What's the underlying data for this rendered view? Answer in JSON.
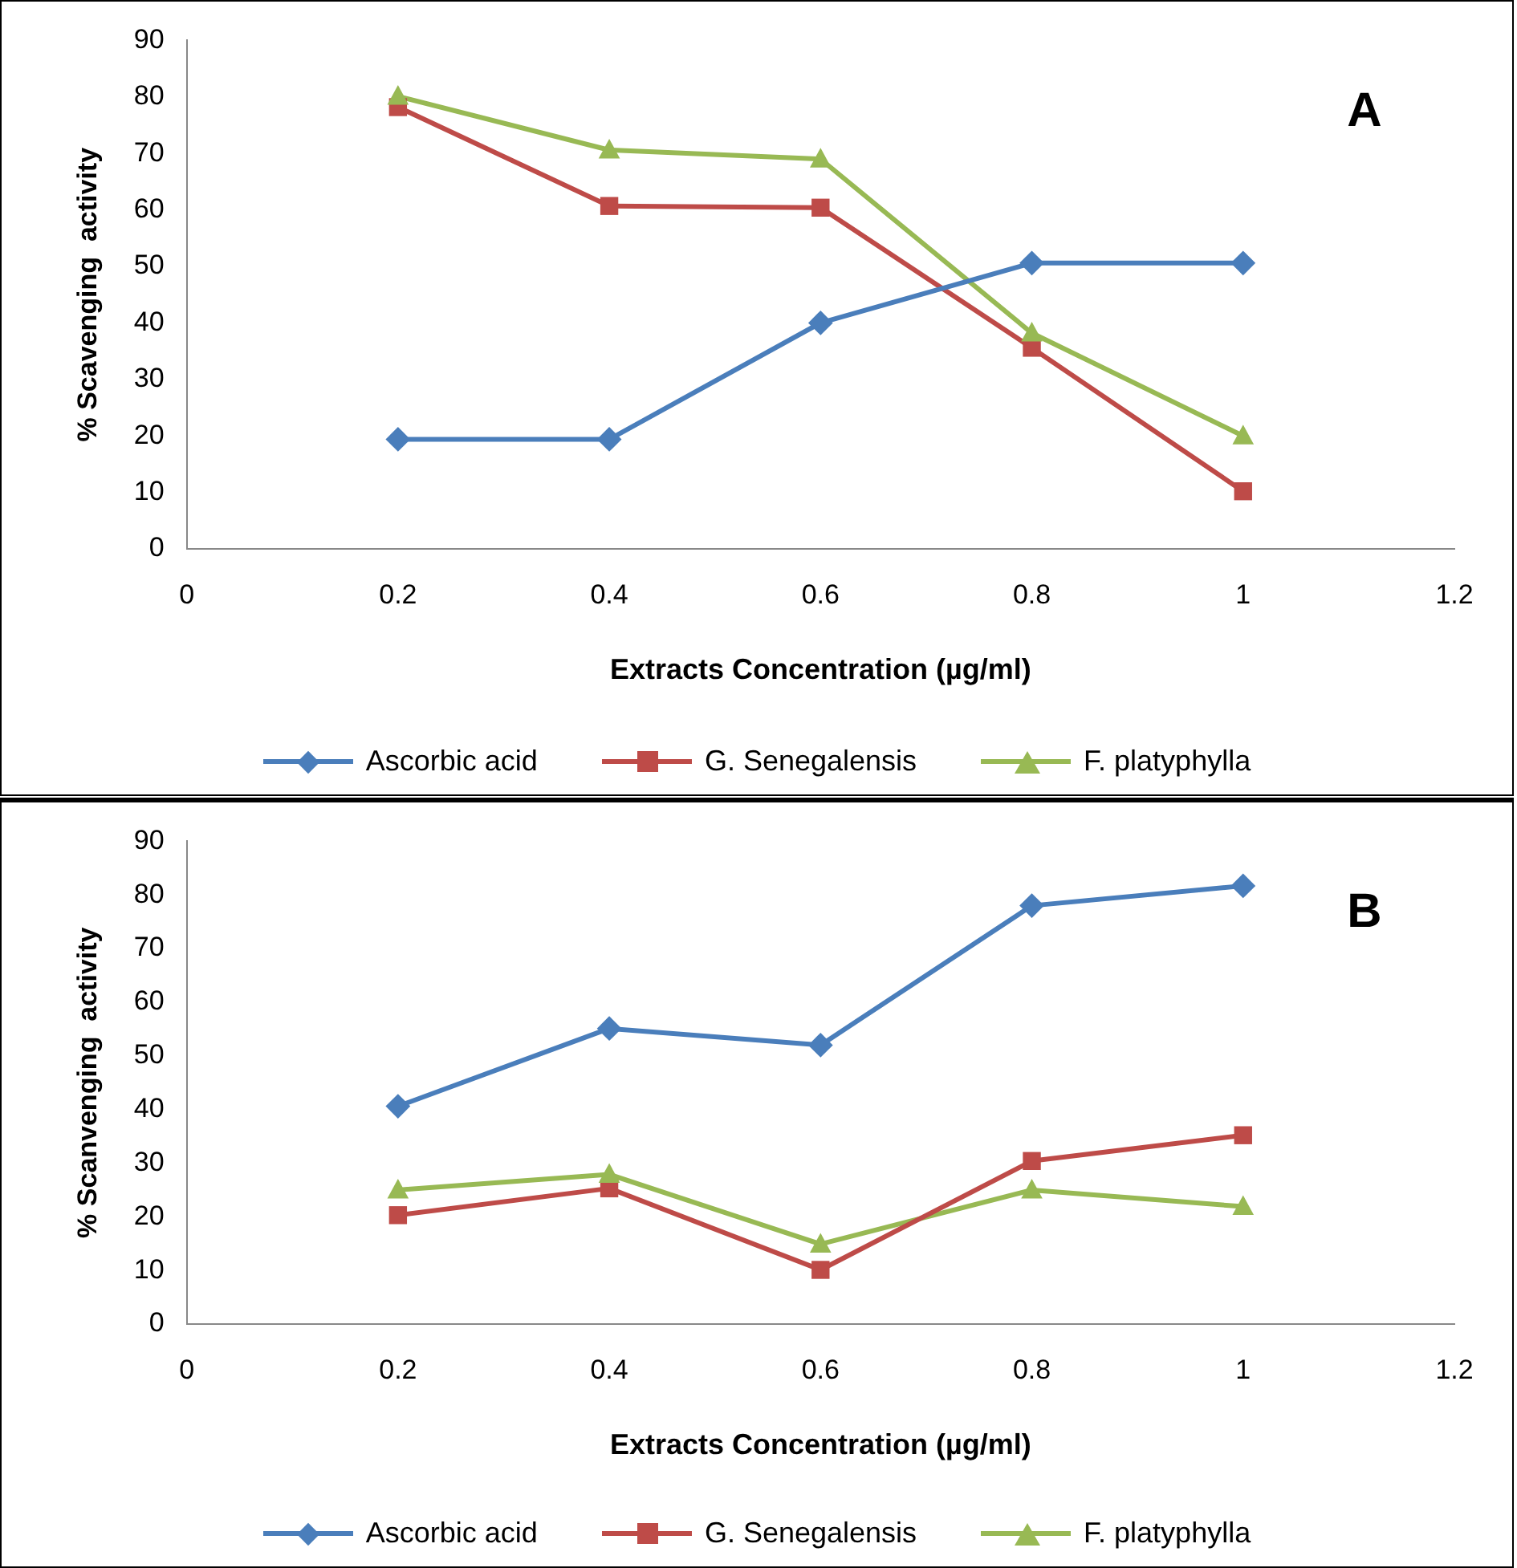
{
  "chart_data": [
    {
      "type": "line",
      "xlabel": "Extracts Concentration (µg/ml)",
      "ylabel": "% Scavenging  activity",
      "annotations": [
        "A"
      ],
      "xlim": [
        0,
        1.2
      ],
      "xticks": [
        0,
        0.2,
        0.4,
        0.6,
        0.8,
        1,
        1.2
      ],
      "ylim": [
        0,
        90
      ],
      "yticks": [
        0,
        10,
        20,
        30,
        40,
        50,
        60,
        70,
        80,
        90
      ],
      "grid": false,
      "legend": "bottom",
      "x": [
        0.2,
        0.4,
        0.6,
        0.8,
        1
      ],
      "series": [
        {
          "name": "Ascorbic acid",
          "color": "#4a7ebb",
          "marker": "diamond",
          "values": [
            19.4,
            19.4,
            40,
            50.6,
            50.6
          ]
        },
        {
          "name": "G. Senegalensis",
          "color": "#be4b48",
          "marker": "square",
          "values": [
            78.2,
            60.7,
            60.4,
            35.6,
            10.2
          ]
        },
        {
          "name": "F. platyphylla",
          "color": "#98b954",
          "marker": "triangle",
          "values": [
            80.1,
            70.6,
            69,
            38.2,
            20
          ]
        }
      ]
    },
    {
      "type": "line",
      "xlabel": "Extracts Concentration (µg/ml)",
      "ylabel": "% Scanvenging  activity",
      "annotations": [
        "B"
      ],
      "xlim": [
        0,
        1.2
      ],
      "xticks": [
        0,
        0.2,
        0.4,
        0.6,
        0.8,
        1,
        1.2
      ],
      "ylim": [
        0,
        90
      ],
      "yticks": [
        0,
        10,
        20,
        30,
        40,
        50,
        60,
        70,
        80,
        90
      ],
      "grid": false,
      "legend": "bottom",
      "x": [
        0.2,
        0.4,
        0.6,
        0.8,
        1
      ],
      "series": [
        {
          "name": "Ascorbic acid",
          "color": "#4a7ebb",
          "marker": "diamond",
          "values": [
            40.6,
            55.1,
            52,
            78,
            81.7
          ]
        },
        {
          "name": "G. Senegalensis",
          "color": "#be4b48",
          "marker": "square",
          "values": [
            20.3,
            25.3,
            10.1,
            30.4,
            35.2
          ]
        },
        {
          "name": "F. platyphylla",
          "color": "#98b954",
          "marker": "triangle",
          "values": [
            25,
            27.9,
            14.9,
            25,
            21.9
          ]
        }
      ]
    }
  ]
}
